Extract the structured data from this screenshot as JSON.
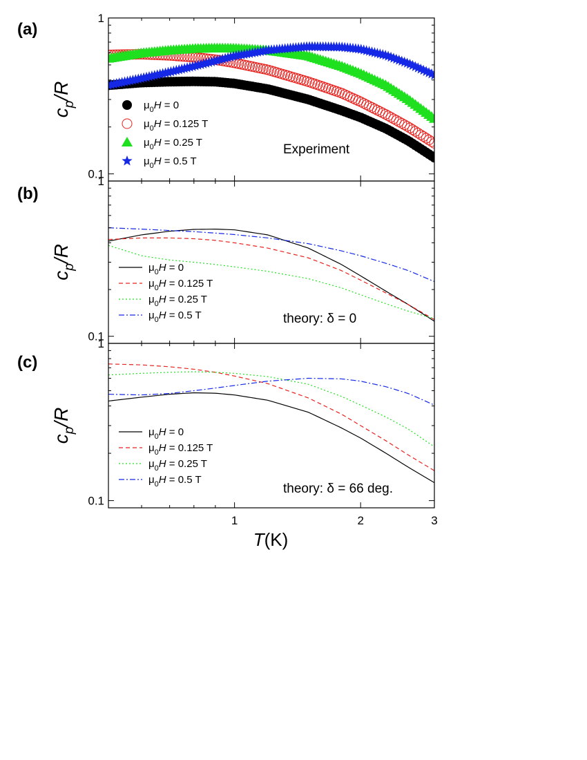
{
  "figure": {
    "x_axis_label_symbol": "T",
    "x_axis_label_unit": "(K)",
    "y_axis_label_base": "c",
    "y_axis_label_sub": "p",
    "y_axis_label_rest": "/R"
  },
  "chart_data": [
    {
      "type": "scatter",
      "panel_label": "(a)",
      "annotation": "Experiment",
      "xscale": "log",
      "yscale": "log",
      "xlim": [
        0.5,
        3
      ],
      "ylim": [
        0.09,
        1
      ],
      "x_ticks": [
        1,
        2,
        3
      ],
      "x_tick_labels": [
        "1",
        "2",
        "3"
      ],
      "y_ticks": [
        0.1,
        1
      ],
      "y_tick_labels": [
        "0.1",
        "1"
      ],
      "legend_position": "lower-left",
      "series": [
        {
          "name": "μ0H = 0",
          "legend_prefix": "μ",
          "legend_sub": "0",
          "legend_H": "H",
          "legend_suffix": " = 0",
          "color": "#000000",
          "marker": "filled-circle",
          "x": [
            0.5,
            0.6,
            0.7,
            0.8,
            0.9,
            1.0,
            1.2,
            1.5,
            1.8,
            2.0,
            2.3,
            2.6,
            3.0
          ],
          "y": [
            0.37,
            0.385,
            0.39,
            0.392,
            0.39,
            0.38,
            0.35,
            0.3,
            0.255,
            0.23,
            0.195,
            0.163,
            0.127
          ]
        },
        {
          "name": "μ0H = 0.125 T",
          "legend_prefix": "μ",
          "legend_sub": "0",
          "legend_H": "H",
          "legend_suffix": " = 0.125 T",
          "color": "#e8211d",
          "marker": "open-circle",
          "x": [
            0.5,
            0.6,
            0.7,
            0.8,
            0.9,
            1.0,
            1.2,
            1.5,
            1.8,
            2.0,
            2.3,
            2.6,
            3.0
          ],
          "y": [
            0.58,
            0.585,
            0.575,
            0.56,
            0.54,
            0.515,
            0.465,
            0.39,
            0.33,
            0.29,
            0.24,
            0.2,
            0.157
          ]
        },
        {
          "name": "μ0H = 0.25 T",
          "legend_prefix": "μ",
          "legend_sub": "0",
          "legend_H": "H",
          "legend_suffix": " = 0.25 T",
          "color": "#1ee01e",
          "marker": "filled-triangle",
          "x": [
            0.5,
            0.6,
            0.7,
            0.8,
            0.9,
            1.0,
            1.2,
            1.5,
            1.8,
            2.0,
            2.3,
            2.6,
            3.0
          ],
          "y": [
            0.55,
            0.595,
            0.62,
            0.635,
            0.64,
            0.638,
            0.62,
            0.57,
            0.49,
            0.44,
            0.37,
            0.3,
            0.226
          ]
        },
        {
          "name": "μ0H = 0.5 T",
          "legend_prefix": "μ",
          "legend_sub": "0",
          "legend_H": "H",
          "legend_suffix": " = 0.5 T",
          "color": "#1428e6",
          "marker": "filled-star",
          "x": [
            0.5,
            0.6,
            0.7,
            0.8,
            0.9,
            1.0,
            1.2,
            1.5,
            1.8,
            2.0,
            2.3,
            2.6,
            3.0
          ],
          "y": [
            0.37,
            0.41,
            0.45,
            0.49,
            0.53,
            0.57,
            0.62,
            0.655,
            0.65,
            0.63,
            0.575,
            0.51,
            0.43
          ]
        }
      ]
    },
    {
      "type": "line",
      "panel_label": "(b)",
      "annotation": "theory: δ = 0",
      "xscale": "log",
      "yscale": "log",
      "xlim": [
        0.5,
        3
      ],
      "ylim": [
        0.09,
        1
      ],
      "x_ticks": [
        1,
        2,
        3
      ],
      "x_tick_labels": [
        "1",
        "2",
        "3"
      ],
      "y_ticks": [
        0.1,
        1
      ],
      "y_tick_labels": [
        "0.1",
        "1"
      ],
      "legend_position": "lower-left",
      "series": [
        {
          "name": "μ0H = 0",
          "legend_prefix": "μ",
          "legend_sub": "0",
          "legend_H": "H",
          "legend_suffix": " = 0",
          "color": "#000000",
          "dash": "",
          "x": [
            0.5,
            0.6,
            0.7,
            0.8,
            0.9,
            1.0,
            1.2,
            1.5,
            1.8,
            2.0,
            2.3,
            2.6,
            3.0
          ],
          "y": [
            0.41,
            0.45,
            0.475,
            0.488,
            0.49,
            0.485,
            0.45,
            0.37,
            0.29,
            0.245,
            0.195,
            0.16,
            0.125
          ]
        },
        {
          "name": "μ0H = 0.125 T",
          "legend_prefix": "μ",
          "legend_sub": "0",
          "legend_H": "H",
          "legend_suffix": " = 0.125 T",
          "color": "#e8211d",
          "dash": "6,4",
          "x": [
            0.5,
            0.6,
            0.7,
            0.8,
            0.9,
            1.0,
            1.2,
            1.5,
            1.8,
            2.0,
            2.3,
            2.6,
            3.0
          ],
          "y": [
            0.42,
            0.43,
            0.43,
            0.425,
            0.415,
            0.4,
            0.37,
            0.32,
            0.265,
            0.23,
            0.19,
            0.16,
            0.128
          ]
        },
        {
          "name": "μ0H = 0.25 T",
          "legend_prefix": "μ",
          "legend_sub": "0",
          "legend_H": "H",
          "legend_suffix": " = 0.25 T",
          "color": "#1ee01e",
          "dash": "2,3",
          "x": [
            0.5,
            0.6,
            0.7,
            0.8,
            0.9,
            1.0,
            1.2,
            1.5,
            1.8,
            2.0,
            2.3,
            2.6,
            3.0
          ],
          "y": [
            0.385,
            0.33,
            0.31,
            0.3,
            0.29,
            0.28,
            0.262,
            0.235,
            0.205,
            0.185,
            0.162,
            0.145,
            0.13
          ]
        },
        {
          "name": "μ0H = 0.5 T",
          "legend_prefix": "μ",
          "legend_sub": "0",
          "legend_H": "H",
          "legend_suffix": " = 0.5 T",
          "color": "#1428e6",
          "dash": "8,3,2,3",
          "x": [
            0.5,
            0.6,
            0.7,
            0.8,
            0.9,
            1.0,
            1.2,
            1.5,
            1.8,
            2.0,
            2.3,
            2.6,
            3.0
          ],
          "y": [
            0.5,
            0.49,
            0.48,
            0.472,
            0.462,
            0.452,
            0.43,
            0.395,
            0.355,
            0.33,
            0.295,
            0.265,
            0.225
          ]
        }
      ]
    },
    {
      "type": "line",
      "panel_label": "(c)",
      "annotation": "theory: δ = 66 deg.",
      "xscale": "log",
      "yscale": "log",
      "xlim": [
        0.5,
        3
      ],
      "ylim": [
        0.09,
        1
      ],
      "x_ticks": [
        1,
        2,
        3
      ],
      "x_tick_labels": [
        "1",
        "2",
        "3"
      ],
      "y_ticks": [
        0.1,
        1
      ],
      "y_tick_labels": [
        "0.1",
        "1"
      ],
      "legend_position": "lower-left",
      "series": [
        {
          "name": "μ0H = 0",
          "legend_prefix": "μ",
          "legend_sub": "0",
          "legend_H": "H",
          "legend_suffix": " = 0",
          "color": "#000000",
          "dash": "",
          "x": [
            0.5,
            0.6,
            0.7,
            0.8,
            0.9,
            1.0,
            1.2,
            1.5,
            1.8,
            2.0,
            2.3,
            2.6,
            3.0
          ],
          "y": [
            0.43,
            0.455,
            0.475,
            0.485,
            0.482,
            0.47,
            0.435,
            0.365,
            0.29,
            0.25,
            0.2,
            0.163,
            0.13
          ]
        },
        {
          "name": "μ0H = 0.125 T",
          "legend_prefix": "μ",
          "legend_sub": "0",
          "legend_H": "H",
          "legend_suffix": " = 0.125 T",
          "color": "#e8211d",
          "dash": "6,4",
          "x": [
            0.5,
            0.6,
            0.7,
            0.8,
            0.9,
            1.0,
            1.2,
            1.5,
            1.8,
            2.0,
            2.3,
            2.6,
            3.0
          ],
          "y": [
            0.74,
            0.73,
            0.71,
            0.685,
            0.655,
            0.62,
            0.555,
            0.45,
            0.355,
            0.3,
            0.24,
            0.195,
            0.155
          ]
        },
        {
          "name": "μ0H = 0.25 T",
          "legend_prefix": "μ",
          "legend_sub": "0",
          "legend_H": "H",
          "legend_suffix": " = 0.25 T",
          "color": "#1ee01e",
          "dash": "2,3",
          "x": [
            0.5,
            0.6,
            0.7,
            0.8,
            0.9,
            1.0,
            1.2,
            1.5,
            1.8,
            2.0,
            2.3,
            2.6,
            3.0
          ],
          "y": [
            0.63,
            0.645,
            0.655,
            0.66,
            0.655,
            0.645,
            0.615,
            0.55,
            0.46,
            0.405,
            0.34,
            0.285,
            0.22
          ]
        },
        {
          "name": "μ0H = 0.5 T",
          "legend_prefix": "μ",
          "legend_sub": "0",
          "legend_H": "H",
          "legend_suffix": " = 0.5 T",
          "color": "#1428e6",
          "dash": "8,3,2,3",
          "x": [
            0.5,
            0.6,
            0.7,
            0.8,
            0.9,
            1.0,
            1.2,
            1.5,
            1.8,
            2.0,
            2.3,
            2.6,
            3.0
          ],
          "y": [
            0.475,
            0.47,
            0.48,
            0.5,
            0.52,
            0.54,
            0.575,
            0.6,
            0.595,
            0.575,
            0.53,
            0.48,
            0.405
          ]
        }
      ]
    }
  ]
}
